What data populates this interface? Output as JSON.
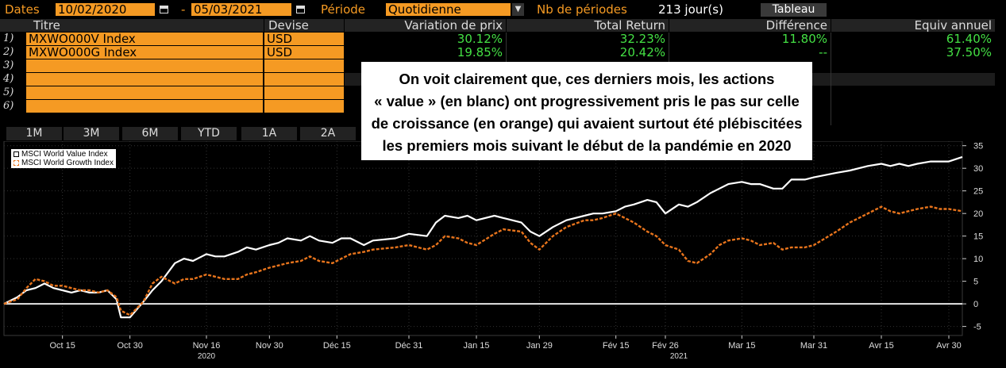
{
  "header": {
    "dates_label": "Dates",
    "start_date": "10/02/2020",
    "dash": "-",
    "end_date": "05/03/2021",
    "period_label": "Période",
    "period_value": "Quotidienne",
    "nb_periods_label": "Nb de périodes",
    "nb_periods_value": "213 jour(s)",
    "table_button": "Tableau"
  },
  "table": {
    "columns": [
      "Titre",
      "Devise",
      "Variation de prix",
      "Total Return",
      "Différence",
      "Equiv annuel"
    ],
    "rows": [
      {
        "num": "1)",
        "ticker": "MXWO000V Index",
        "currency": "USD",
        "price_change": "30.12%",
        "total_return": "32.23%",
        "difference": "11.80%",
        "annual": "61.40%"
      },
      {
        "num": "2)",
        "ticker": "MXWO000G Index",
        "currency": "USD",
        "price_change": "19.85%",
        "total_return": "20.42%",
        "difference": "--",
        "annual": "37.50%"
      },
      {
        "num": "3)",
        "ticker": "",
        "currency": "",
        "price_change": "",
        "total_return": "",
        "difference": "",
        "annual": ""
      },
      {
        "num": "4)",
        "ticker": "",
        "currency": "",
        "price_change": "",
        "total_return": "",
        "difference": "",
        "annual": ""
      },
      {
        "num": "5)",
        "ticker": "",
        "currency": "",
        "price_change": "",
        "total_return": "",
        "difference": "",
        "annual": ""
      },
      {
        "num": "6)",
        "ticker": "",
        "currency": "",
        "price_change": "",
        "total_return": "",
        "difference": "",
        "annual": ""
      }
    ]
  },
  "range_buttons": [
    "1M",
    "3M",
    "6M",
    "YTD",
    "1A",
    "2A"
  ],
  "overlay_text": [
    "On voit clairement que, ces derniers mois, les actions",
    "« value » (en blanc) ont progressivement pris le pas sur celle",
    "de croissance (en orange) qui avaient surtout été plébiscitées",
    "les premiers mois suivant le début de la pandémie en 2020"
  ],
  "colors": {
    "accent_orange": "#f59a23",
    "positive_green": "#44e044",
    "value_series": "#ffffff",
    "growth_series": "#e8741c",
    "background": "#000000"
  },
  "chart_data": {
    "type": "line",
    "legend": {
      "placement": "top-left",
      "entries": [
        "MSCI World Value Index",
        "MSCI World Growth Index"
      ]
    },
    "ylim": [
      -7,
      36
    ],
    "yticks": [
      -5,
      0,
      5,
      10,
      15,
      20,
      25,
      30,
      35
    ],
    "grid": true,
    "x_ticks": [
      "Oct 15",
      "Oct 30",
      "Nov 16",
      "Nov 30",
      "Déc 15",
      "Déc 31",
      "Jan 15",
      "Jan 29",
      "Fév 15",
      "Fév 26",
      "Mar 15",
      "Mar 31",
      "Avr 15",
      "Avr 30"
    ],
    "x_years": [
      "2020",
      "2021"
    ],
    "x_start": "2020-10-02",
    "x_end": "2021-05-03",
    "series": [
      {
        "name": "MSCI World Value Index",
        "color": "#ffffff",
        "points": [
          [
            "2020-10-02",
            0.0
          ],
          [
            "2020-10-05",
            1.5
          ],
          [
            "2020-10-07",
            3.0
          ],
          [
            "2020-10-09",
            3.5
          ],
          [
            "2020-10-11",
            4.5
          ],
          [
            "2020-10-13",
            3.5
          ],
          [
            "2020-10-15",
            3.0
          ],
          [
            "2020-10-17",
            2.5
          ],
          [
            "2020-10-19",
            3.0
          ],
          [
            "2020-10-21",
            2.5
          ],
          [
            "2020-10-23",
            2.5
          ],
          [
            "2020-10-25",
            3.0
          ],
          [
            "2020-10-27",
            1.0
          ],
          [
            "2020-10-28",
            -3.0
          ],
          [
            "2020-10-30",
            -3.0
          ],
          [
            "2020-11-02",
            0.5
          ],
          [
            "2020-11-04",
            3.0
          ],
          [
            "2020-11-06",
            5.0
          ],
          [
            "2020-11-09",
            9.0
          ],
          [
            "2020-11-11",
            10.0
          ],
          [
            "2020-11-13",
            9.5
          ],
          [
            "2020-11-16",
            11.0
          ],
          [
            "2020-11-18",
            10.5
          ],
          [
            "2020-11-20",
            10.5
          ],
          [
            "2020-11-23",
            11.5
          ],
          [
            "2020-11-25",
            12.5
          ],
          [
            "2020-11-27",
            12.0
          ],
          [
            "2020-11-30",
            13.0
          ],
          [
            "2020-12-02",
            13.5
          ],
          [
            "2020-12-04",
            14.5
          ],
          [
            "2020-12-07",
            14.0
          ],
          [
            "2020-12-09",
            15.0
          ],
          [
            "2020-12-11",
            14.0
          ],
          [
            "2020-12-14",
            13.5
          ],
          [
            "2020-12-16",
            14.5
          ],
          [
            "2020-12-18",
            14.5
          ],
          [
            "2020-12-21",
            13.0
          ],
          [
            "2020-12-23",
            14.0
          ],
          [
            "2020-12-28",
            14.5
          ],
          [
            "2020-12-31",
            15.5
          ],
          [
            "2021-01-04",
            15.0
          ],
          [
            "2021-01-06",
            18.0
          ],
          [
            "2021-01-08",
            19.5
          ],
          [
            "2021-01-11",
            19.0
          ],
          [
            "2021-01-13",
            19.5
          ],
          [
            "2021-01-15",
            18.5
          ],
          [
            "2021-01-19",
            19.5
          ],
          [
            "2021-01-21",
            19.0
          ],
          [
            "2021-01-25",
            18.0
          ],
          [
            "2021-01-27",
            16.0
          ],
          [
            "2021-01-29",
            15.0
          ],
          [
            "2021-02-01",
            17.0
          ],
          [
            "2021-02-04",
            18.5
          ],
          [
            "2021-02-08",
            19.5
          ],
          [
            "2021-02-10",
            20.0
          ],
          [
            "2021-02-12",
            20.0
          ],
          [
            "2021-02-15",
            20.5
          ],
          [
            "2021-02-17",
            21.5
          ],
          [
            "2021-02-19",
            22.0
          ],
          [
            "2021-02-22",
            23.0
          ],
          [
            "2021-02-24",
            22.5
          ],
          [
            "2021-02-26",
            20.0
          ],
          [
            "2021-03-01",
            22.0
          ],
          [
            "2021-03-03",
            21.5
          ],
          [
            "2021-03-05",
            22.5
          ],
          [
            "2021-03-08",
            24.5
          ],
          [
            "2021-03-10",
            25.5
          ],
          [
            "2021-03-12",
            26.5
          ],
          [
            "2021-03-15",
            27.0
          ],
          [
            "2021-03-17",
            26.5
          ],
          [
            "2021-03-19",
            26.5
          ],
          [
            "2021-03-22",
            25.5
          ],
          [
            "2021-03-24",
            25.5
          ],
          [
            "2021-03-26",
            27.5
          ],
          [
            "2021-03-29",
            27.5
          ],
          [
            "2021-03-31",
            28.0
          ],
          [
            "2021-04-05",
            29.0
          ],
          [
            "2021-04-08",
            29.5
          ],
          [
            "2021-04-12",
            30.5
          ],
          [
            "2021-04-15",
            31.0
          ],
          [
            "2021-04-17",
            30.5
          ],
          [
            "2021-04-19",
            31.0
          ],
          [
            "2021-04-21",
            30.5
          ],
          [
            "2021-04-23",
            31.0
          ],
          [
            "2021-04-26",
            31.5
          ],
          [
            "2021-04-28",
            31.5
          ],
          [
            "2021-04-30",
            31.5
          ],
          [
            "2021-05-03",
            32.5
          ]
        ]
      },
      {
        "name": "MSCI World Growth Index",
        "color": "#e8741c",
        "points": [
          [
            "2020-10-02",
            0.0
          ],
          [
            "2020-10-05",
            1.0
          ],
          [
            "2020-10-07",
            3.5
          ],
          [
            "2020-10-09",
            5.5
          ],
          [
            "2020-10-11",
            5.0
          ],
          [
            "2020-10-13",
            4.0
          ],
          [
            "2020-10-15",
            4.0
          ],
          [
            "2020-10-17",
            3.5
          ],
          [
            "2020-10-19",
            3.0
          ],
          [
            "2020-10-21",
            3.0
          ],
          [
            "2020-10-23",
            2.5
          ],
          [
            "2020-10-25",
            3.0
          ],
          [
            "2020-10-27",
            1.5
          ],
          [
            "2020-10-28",
            -1.5
          ],
          [
            "2020-10-30",
            -2.5
          ],
          [
            "2020-11-02",
            0.5
          ],
          [
            "2020-11-04",
            4.5
          ],
          [
            "2020-11-06",
            6.0
          ],
          [
            "2020-11-09",
            4.5
          ],
          [
            "2020-11-11",
            5.5
          ],
          [
            "2020-11-13",
            5.5
          ],
          [
            "2020-11-16",
            6.5
          ],
          [
            "2020-11-18",
            6.0
          ],
          [
            "2020-11-20",
            5.5
          ],
          [
            "2020-11-23",
            5.5
          ],
          [
            "2020-11-25",
            6.5
          ],
          [
            "2020-11-27",
            7.0
          ],
          [
            "2020-11-30",
            8.0
          ],
          [
            "2020-12-02",
            8.5
          ],
          [
            "2020-12-04",
            9.0
          ],
          [
            "2020-12-07",
            9.5
          ],
          [
            "2020-12-09",
            10.5
          ],
          [
            "2020-12-11",
            9.5
          ],
          [
            "2020-12-14",
            9.0
          ],
          [
            "2020-12-16",
            10.0
          ],
          [
            "2020-12-18",
            11.0
          ],
          [
            "2020-12-21",
            11.5
          ],
          [
            "2020-12-23",
            12.0
          ],
          [
            "2020-12-28",
            12.5
          ],
          [
            "2020-12-31",
            13.0
          ],
          [
            "2021-01-04",
            12.0
          ],
          [
            "2021-01-06",
            13.0
          ],
          [
            "2021-01-08",
            15.0
          ],
          [
            "2021-01-11",
            14.5
          ],
          [
            "2021-01-13",
            13.5
          ],
          [
            "2021-01-15",
            13.0
          ],
          [
            "2021-01-19",
            15.5
          ],
          [
            "2021-01-21",
            16.5
          ],
          [
            "2021-01-25",
            16.0
          ],
          [
            "2021-01-27",
            13.5
          ],
          [
            "2021-01-29",
            12.0
          ],
          [
            "2021-02-01",
            15.0
          ],
          [
            "2021-02-04",
            17.0
          ],
          [
            "2021-02-08",
            18.5
          ],
          [
            "2021-02-10",
            18.5
          ],
          [
            "2021-02-12",
            19.0
          ],
          [
            "2021-02-15",
            20.0
          ],
          [
            "2021-02-17",
            19.0
          ],
          [
            "2021-02-19",
            18.0
          ],
          [
            "2021-02-22",
            16.0
          ],
          [
            "2021-02-24",
            15.0
          ],
          [
            "2021-02-26",
            13.0
          ],
          [
            "2021-03-01",
            12.0
          ],
          [
            "2021-03-03",
            9.5
          ],
          [
            "2021-03-05",
            9.0
          ],
          [
            "2021-03-08",
            11.0
          ],
          [
            "2021-03-10",
            13.0
          ],
          [
            "2021-03-12",
            14.0
          ],
          [
            "2021-03-15",
            14.5
          ],
          [
            "2021-03-17",
            14.0
          ],
          [
            "2021-03-19",
            13.0
          ],
          [
            "2021-03-22",
            13.5
          ],
          [
            "2021-03-24",
            12.0
          ],
          [
            "2021-03-26",
            12.5
          ],
          [
            "2021-03-29",
            12.5
          ],
          [
            "2021-03-31",
            13.0
          ],
          [
            "2021-04-05",
            16.0
          ],
          [
            "2021-04-08",
            18.0
          ],
          [
            "2021-04-12",
            20.0
          ],
          [
            "2021-04-15",
            21.5
          ],
          [
            "2021-04-17",
            20.5
          ],
          [
            "2021-04-19",
            20.0
          ],
          [
            "2021-04-21",
            20.5
          ],
          [
            "2021-04-23",
            21.0
          ],
          [
            "2021-04-26",
            21.5
          ],
          [
            "2021-04-28",
            21.0
          ],
          [
            "2021-04-30",
            21.0
          ],
          [
            "2021-05-03",
            20.5
          ]
        ]
      }
    ]
  }
}
